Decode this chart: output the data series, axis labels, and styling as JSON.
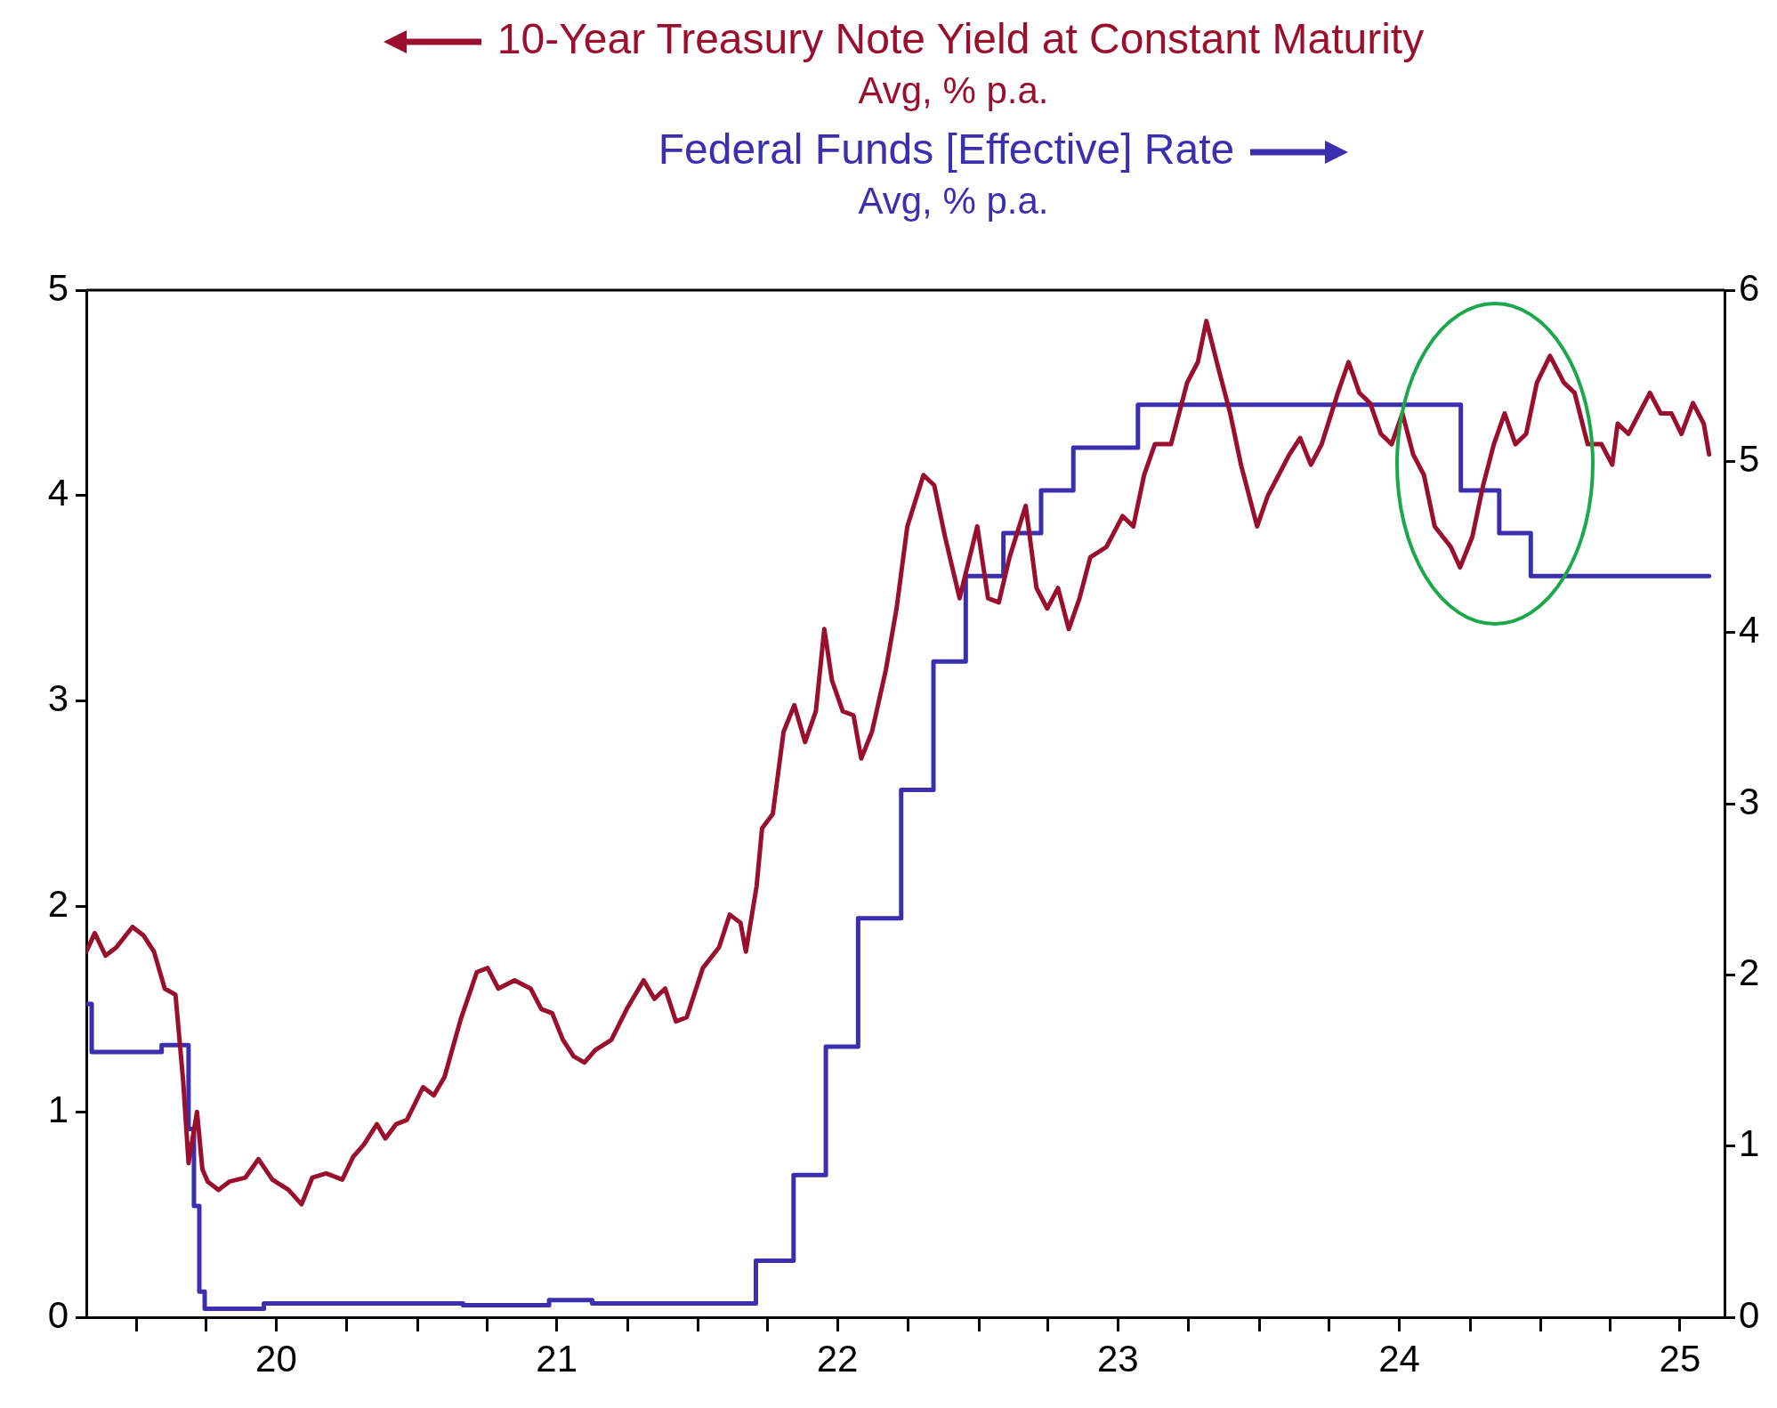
{
  "chart_data": {
    "type": "line",
    "annotations": [
      "Avg, % p.a.",
      "Avg, % p.a."
    ],
    "legend": "top",
    "marker": "none",
    "line_style": "solid",
    "grid": false,
    "xlim": [
      "2019-10-28",
      "2025-08-28"
    ],
    "xticks": [
      {
        "value": "2020-01-01",
        "label": null
      },
      {
        "value": "2020-04-01",
        "label": null
      },
      {
        "value": "2020-07-01",
        "label": "20"
      },
      {
        "value": "2020-10-01",
        "label": null
      },
      {
        "value": "2021-01-01",
        "label": null
      },
      {
        "value": "2021-04-01",
        "label": null
      },
      {
        "value": "2021-07-01",
        "label": "21"
      },
      {
        "value": "2021-10-01",
        "label": null
      },
      {
        "value": "2022-01-01",
        "label": null
      },
      {
        "value": "2022-04-01",
        "label": null
      },
      {
        "value": "2022-07-01",
        "label": "22"
      },
      {
        "value": "2022-10-01",
        "label": null
      },
      {
        "value": "2023-01-01",
        "label": null
      },
      {
        "value": "2023-04-01",
        "label": null
      },
      {
        "value": "2023-07-01",
        "label": "23"
      },
      {
        "value": "2023-10-01",
        "label": null
      },
      {
        "value": "2024-01-01",
        "label": null
      },
      {
        "value": "2024-04-01",
        "label": null
      },
      {
        "value": "2024-07-01",
        "label": "24"
      },
      {
        "value": "2024-10-01",
        "label": null
      },
      {
        "value": "2025-01-01",
        "label": null
      },
      {
        "value": "2025-04-01",
        "label": null
      },
      {
        "value": "2025-07-01",
        "label": "25"
      }
    ],
    "ylim": [
      0,
      5
    ],
    "yticks": [
      0,
      1,
      2,
      3,
      4,
      5
    ],
    "y2lim": [
      0,
      6
    ],
    "y2ticks": [
      0,
      1,
      2,
      3,
      4,
      5,
      6
    ],
    "series": [
      {
        "name": "10-Year Treasury Note Yield at Constant Maturity",
        "color": "#9b0f2e",
        "x": [
          "2019-10-28",
          "2019-11-08",
          "2019-11-22",
          "2019-12-06",
          "2019-12-27",
          "2020-01-10",
          "2020-01-24",
          "2020-02-07",
          "2020-02-21",
          "2020-03-02",
          "2020-03-09",
          "2020-03-20",
          "2020-03-27",
          "2020-04-03",
          "2020-04-17",
          "2020-05-01",
          "2020-05-22",
          "2020-06-08",
          "2020-06-26",
          "2020-07-17",
          "2020-08-03",
          "2020-08-17",
          "2020-09-04",
          "2020-09-25",
          "2020-10-09",
          "2020-10-23",
          "2020-11-09",
          "2020-11-20",
          "2020-12-04",
          "2020-12-18",
          "2021-01-08",
          "2021-01-22",
          "2021-02-05",
          "2021-02-26",
          "2021-03-19",
          "2021-04-02",
          "2021-04-16",
          "2021-05-07",
          "2021-05-28",
          "2021-06-11",
          "2021-06-25",
          "2021-07-09",
          "2021-07-23",
          "2021-08-06",
          "2021-08-20",
          "2021-09-10",
          "2021-09-30",
          "2021-10-22",
          "2021-11-05",
          "2021-11-19",
          "2021-12-03",
          "2021-12-17",
          "2022-01-07",
          "2022-01-28",
          "2022-02-11",
          "2022-02-25",
          "2022-03-04",
          "2022-03-18",
          "2022-03-25",
          "2022-04-08",
          "2022-04-22",
          "2022-05-06",
          "2022-05-20",
          "2022-06-03",
          "2022-06-14",
          "2022-06-24",
          "2022-07-08",
          "2022-07-22",
          "2022-08-01",
          "2022-08-15",
          "2022-09-02",
          "2022-09-16",
          "2022-09-30",
          "2022-10-21",
          "2022-11-04",
          "2022-11-18",
          "2022-12-07",
          "2022-12-30",
          "2023-01-13",
          "2023-01-27",
          "2023-02-10",
          "2023-03-03",
          "2023-03-17",
          "2023-03-31",
          "2023-04-14",
          "2023-04-28",
          "2023-05-12",
          "2023-05-26",
          "2023-06-16",
          "2023-07-07",
          "2023-07-21",
          "2023-08-04",
          "2023-08-18",
          "2023-09-08",
          "2023-09-29",
          "2023-10-13",
          "2023-10-24",
          "2023-11-10",
          "2023-11-24",
          "2023-12-08",
          "2023-12-29",
          "2024-01-12",
          "2024-01-26",
          "2024-02-09",
          "2024-02-23",
          "2024-03-08",
          "2024-03-22",
          "2024-04-12",
          "2024-04-26",
          "2024-05-10",
          "2024-05-24",
          "2024-06-07",
          "2024-06-21",
          "2024-07-05",
          "2024-07-19",
          "2024-08-02",
          "2024-08-16",
          "2024-09-06",
          "2024-09-18",
          "2024-10-04",
          "2024-10-18",
          "2024-11-01",
          "2024-11-15",
          "2024-11-29",
          "2024-12-13",
          "2024-12-27",
          "2025-01-13",
          "2025-01-31",
          "2025-02-14",
          "2025-03-03",
          "2025-03-21",
          "2025-04-04",
          "2025-04-11",
          "2025-04-25",
          "2025-05-09",
          "2025-05-23",
          "2025-06-06",
          "2025-06-20",
          "2025-07-03",
          "2025-07-18",
          "2025-08-01",
          "2025-08-08"
        ],
        "values": [
          1.78,
          1.87,
          1.76,
          1.8,
          1.9,
          1.86,
          1.78,
          1.6,
          1.57,
          1.15,
          0.75,
          1.0,
          0.72,
          0.66,
          0.62,
          0.66,
          0.68,
          0.77,
          0.67,
          0.62,
          0.55,
          0.68,
          0.7,
          0.67,
          0.78,
          0.84,
          0.94,
          0.87,
          0.94,
          0.96,
          1.12,
          1.08,
          1.17,
          1.45,
          1.68,
          1.7,
          1.6,
          1.64,
          1.6,
          1.5,
          1.48,
          1.35,
          1.27,
          1.24,
          1.3,
          1.35,
          1.5,
          1.64,
          1.55,
          1.6,
          1.44,
          1.46,
          1.7,
          1.8,
          1.96,
          1.92,
          1.78,
          2.1,
          2.38,
          2.45,
          2.85,
          2.98,
          2.8,
          2.95,
          3.35,
          3.1,
          2.95,
          2.93,
          2.72,
          2.85,
          3.15,
          3.45,
          3.85,
          4.1,
          4.05,
          3.8,
          3.5,
          3.85,
          3.5,
          3.48,
          3.7,
          3.95,
          3.55,
          3.45,
          3.55,
          3.35,
          3.5,
          3.7,
          3.75,
          3.9,
          3.85,
          4.1,
          4.25,
          4.25,
          4.55,
          4.65,
          4.85,
          4.6,
          4.4,
          4.15,
          3.85,
          4.0,
          4.1,
          4.2,
          4.28,
          4.15,
          4.25,
          4.5,
          4.65,
          4.5,
          4.45,
          4.3,
          4.25,
          4.4,
          4.2,
          4.1,
          3.85,
          3.75,
          3.65,
          3.8,
          4.05,
          4.25,
          4.4,
          4.25,
          4.3,
          4.55,
          4.68,
          4.55,
          4.5,
          4.25,
          4.25,
          4.15,
          4.35,
          4.3,
          4.4,
          4.5,
          4.4,
          4.4,
          4.3,
          4.45,
          4.35,
          4.2
        ]
      },
      {
        "name": "Federal Funds [Effective] Rate",
        "color": "#3b2fb0",
        "type": "step",
        "axis": "y2",
        "x": [
          "2019-10-28",
          "2019-11-04",
          "2020-02-03",
          "2020-03-02",
          "2020-03-09",
          "2020-03-16",
          "2020-03-23",
          "2020-03-30",
          "2020-06-15",
          "2021-03-01",
          "2021-06-21",
          "2021-08-16",
          "2022-03-17",
          "2022-05-05",
          "2022-06-16",
          "2022-07-28",
          "2022-09-22",
          "2022-11-03",
          "2022-12-15",
          "2023-02-02",
          "2023-03-23",
          "2023-05-04",
          "2023-07-27",
          "2024-09-19",
          "2024-11-08",
          "2024-12-19",
          "2025-08-08"
        ],
        "values": [
          1.83,
          1.55,
          1.59,
          1.59,
          1.1,
          0.65,
          0.15,
          0.05,
          0.08,
          0.07,
          0.1,
          0.08,
          0.33,
          0.83,
          1.58,
          2.33,
          3.08,
          3.83,
          4.33,
          4.58,
          4.83,
          5.08,
          5.33,
          4.83,
          4.58,
          4.33,
          4.33
        ]
      }
    ]
  }
}
